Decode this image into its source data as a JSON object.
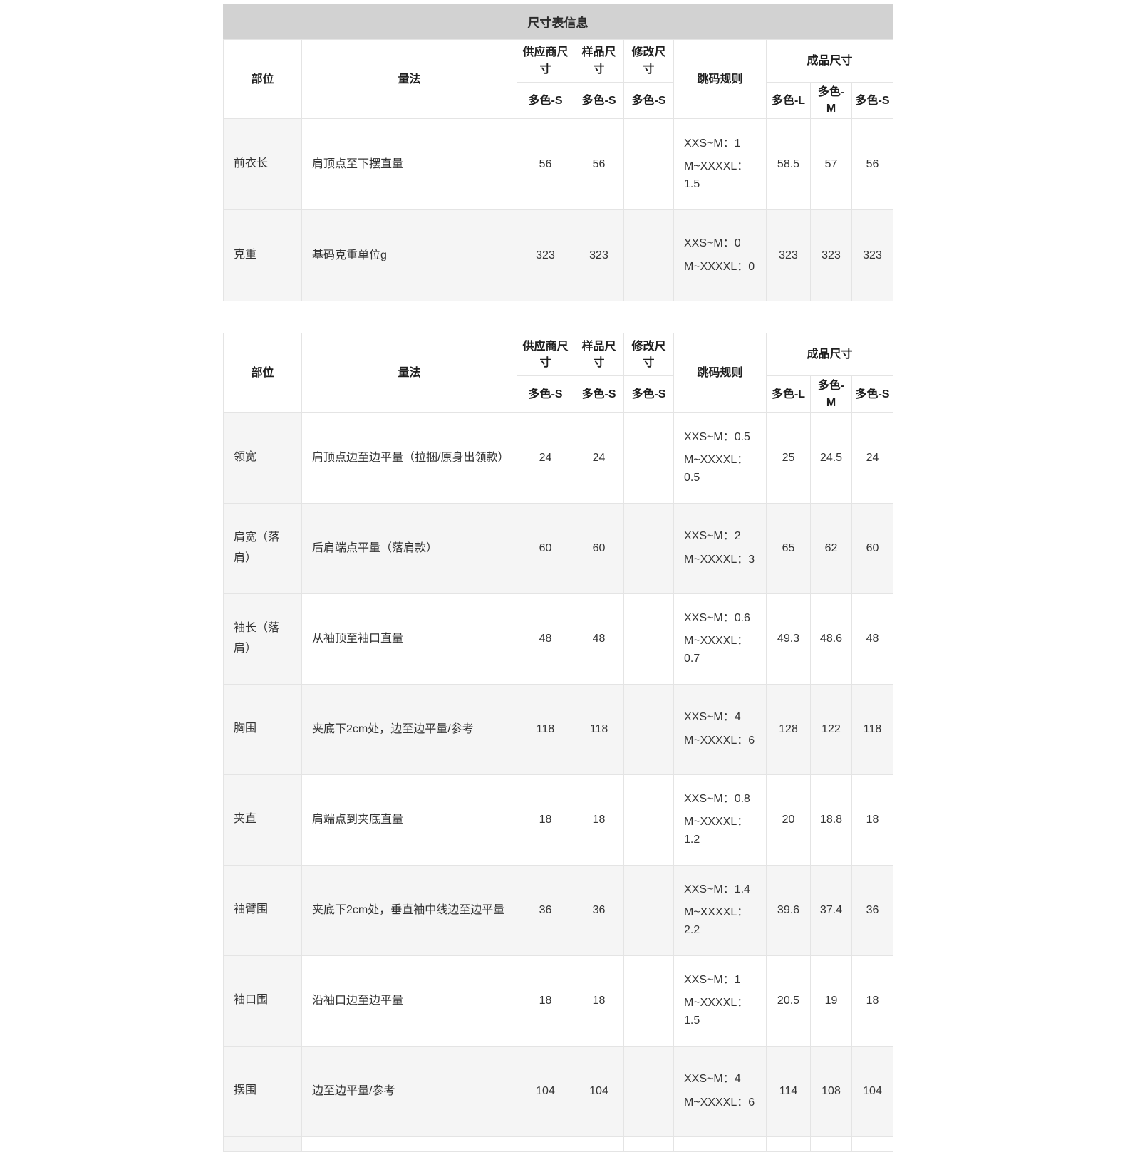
{
  "title": "尺寸表信息",
  "columns": {
    "part": "部位",
    "method": "量法",
    "supplier": "供应商尺寸",
    "sample": "样品尺寸",
    "modified": "修改尺寸",
    "rule": "跳码规则",
    "finished": "成品尺寸",
    "supplier_sub": "多色-S",
    "sample_sub": "多色-S",
    "modified_sub": "多色-S",
    "finished_subs": [
      "多色-L",
      "多色-M",
      "多色-S"
    ]
  },
  "tables": [
    {
      "rows": [
        {
          "part": "前衣长",
          "method": "肩顶点至下摆直量",
          "supplier": "56",
          "sample": "56",
          "modified": "",
          "rule": [
            "XXS~M：1",
            "M~XXXXL：1.5"
          ],
          "finished": [
            "58.5",
            "57",
            "56"
          ]
        },
        {
          "part": "克重",
          "method": "基码克重单位g",
          "supplier": "323",
          "sample": "323",
          "modified": "",
          "rule": [
            "XXS~M：0",
            "M~XXXXL：0"
          ],
          "finished": [
            "323",
            "323",
            "323"
          ]
        }
      ]
    },
    {
      "rows": [
        {
          "part": "领宽",
          "method": "肩顶点边至边平量（拉捆/原身出领款）",
          "supplier": "24",
          "sample": "24",
          "modified": "",
          "rule": [
            "XXS~M：0.5",
            "M~XXXXL：0.5"
          ],
          "finished": [
            "25",
            "24.5",
            "24"
          ]
        },
        {
          "part": "肩宽（落肩）",
          "method": "后肩端点平量（落肩款）",
          "supplier": "60",
          "sample": "60",
          "modified": "",
          "rule": [
            "XXS~M：2",
            "M~XXXXL：3"
          ],
          "finished": [
            "65",
            "62",
            "60"
          ]
        },
        {
          "part": "袖长（落肩）",
          "method": "从袖顶至袖口直量",
          "supplier": "48",
          "sample": "48",
          "modified": "",
          "rule": [
            "XXS~M：0.6",
            "M~XXXXL：0.7"
          ],
          "finished": [
            "49.3",
            "48.6",
            "48"
          ]
        },
        {
          "part": "胸围",
          "method": "夹底下2cm处，边至边平量/参考",
          "supplier": "118",
          "sample": "118",
          "modified": "",
          "rule": [
            "XXS~M：4",
            "M~XXXXL：6"
          ],
          "finished": [
            "128",
            "122",
            "118"
          ]
        },
        {
          "part": "夹直",
          "method": "肩端点到夹底直量",
          "supplier": "18",
          "sample": "18",
          "modified": "",
          "rule": [
            "XXS~M：0.8",
            "M~XXXXL：1.2"
          ],
          "finished": [
            "20",
            "18.8",
            "18"
          ]
        },
        {
          "part": "袖臂围",
          "method": "夹底下2cm处，垂直袖中线边至边平量",
          "supplier": "36",
          "sample": "36",
          "modified": "",
          "rule": [
            "XXS~M：1.4",
            "M~XXXXL：2.2"
          ],
          "finished": [
            "39.6",
            "37.4",
            "36"
          ]
        },
        {
          "part": "袖口围",
          "method": "沿袖口边至边平量",
          "supplier": "18",
          "sample": "18",
          "modified": "",
          "rule": [
            "XXS~M：1",
            "M~XXXXL：1.5"
          ],
          "finished": [
            "20.5",
            "19",
            "18"
          ]
        },
        {
          "part": "摆围",
          "method": "边至边平量/参考",
          "supplier": "104",
          "sample": "104",
          "modified": "",
          "rule": [
            "XXS~M：4",
            "M~XXXXL：6"
          ],
          "finished": [
            "114",
            "108",
            "104"
          ]
        }
      ]
    }
  ]
}
